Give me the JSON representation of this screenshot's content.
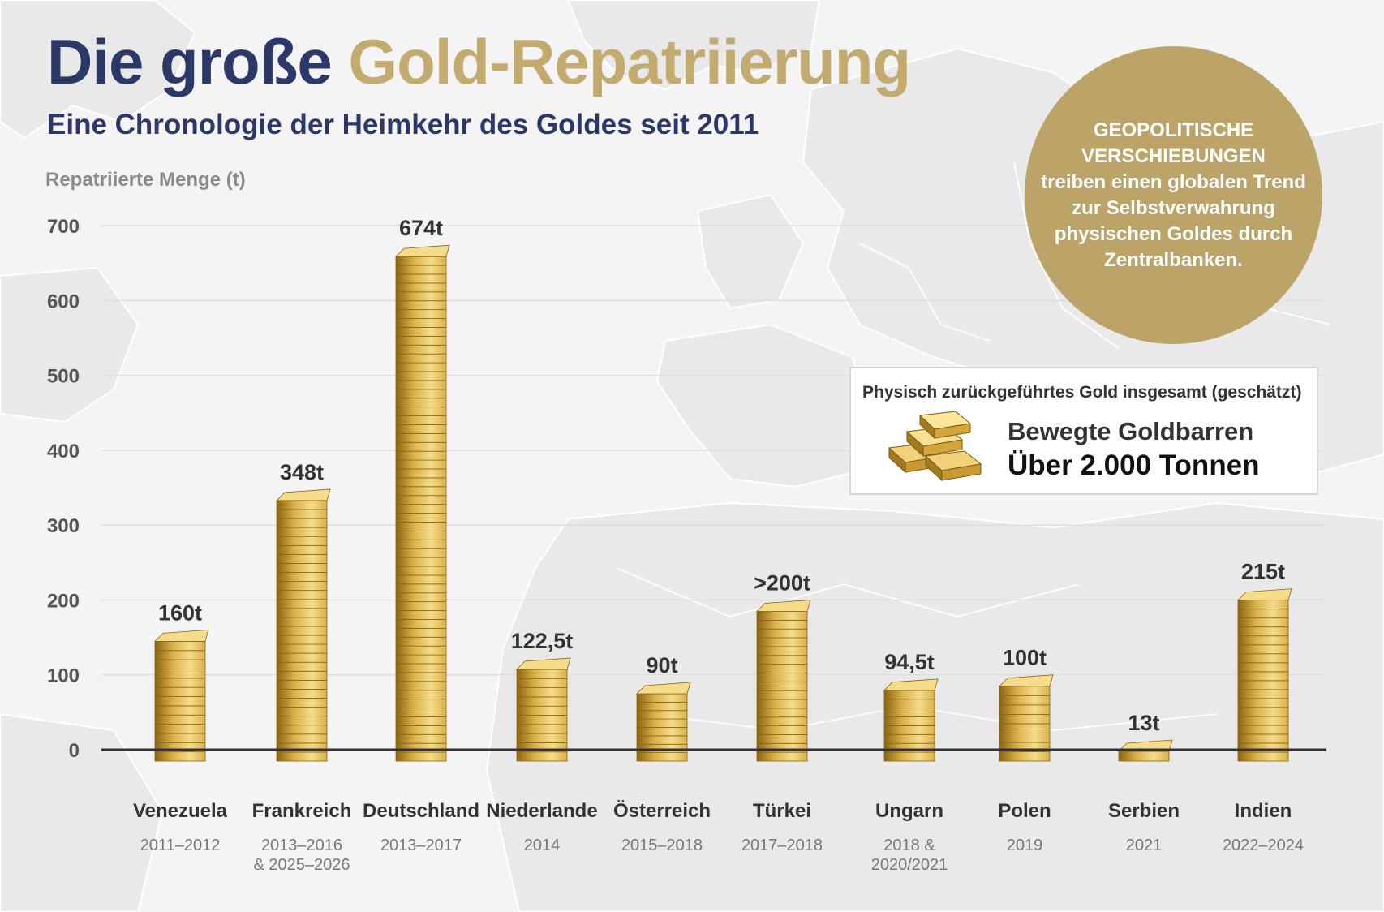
{
  "header": {
    "title_part1": "Die große",
    "title_part2": "Gold-Repatriierung",
    "subtitle": "Eine Chronologie der Heimkehr des Goldes seit 2011"
  },
  "callout": {
    "headline": "GEOPOLITISCHE VERSCHIEBUNGEN",
    "body": "treiben einen globalen Trend zur Selbstverwahrung physischen Goldes durch Zentralbanken."
  },
  "total_box": {
    "caption": "Physisch zurückgeführtes Gold insgesamt (geschätzt)",
    "line1": "Bewegte Goldbarren",
    "line2": "Über 2.000 Tonnen",
    "icon": "gold-bars-stack-icon"
  },
  "colors": {
    "navy": "#2b3868",
    "gold": "#c3aa6f",
    "callout_gold": "#bca468",
    "gold_bar_light": "#f5dc8a",
    "gold_bar_mid": "#d9b04a",
    "gold_bar_dark": "#8a6412"
  },
  "chart_data": {
    "type": "bar",
    "ylabel": "Repatriierte Menge (t)",
    "ylim": [
      0,
      700
    ],
    "yticks": [
      0,
      100,
      200,
      300,
      400,
      500,
      600,
      700
    ],
    "grid": true,
    "categories": [
      "Venezuela",
      "Frankreich",
      "Deutschland",
      "Niederlande",
      "Österreich",
      "Türkei",
      "Ungarn",
      "Polen",
      "Serbien",
      "Indien"
    ],
    "periods": [
      "2011–2012",
      "2013–2016 & 2025–2026",
      "2013–2017",
      "2014",
      "2015–2018",
      "2017–2018",
      "2018 & 2020/2021",
      "2019",
      "2021",
      "2022–2024"
    ],
    "values": [
      160,
      348,
      674,
      122.5,
      90,
      200,
      94.5,
      100,
      13,
      215
    ],
    "value_labels": [
      "160t",
      "348t",
      "674t",
      "122,5t",
      "90t",
      ">200t",
      "94,5t",
      "100t",
      "13t",
      "215t"
    ]
  }
}
